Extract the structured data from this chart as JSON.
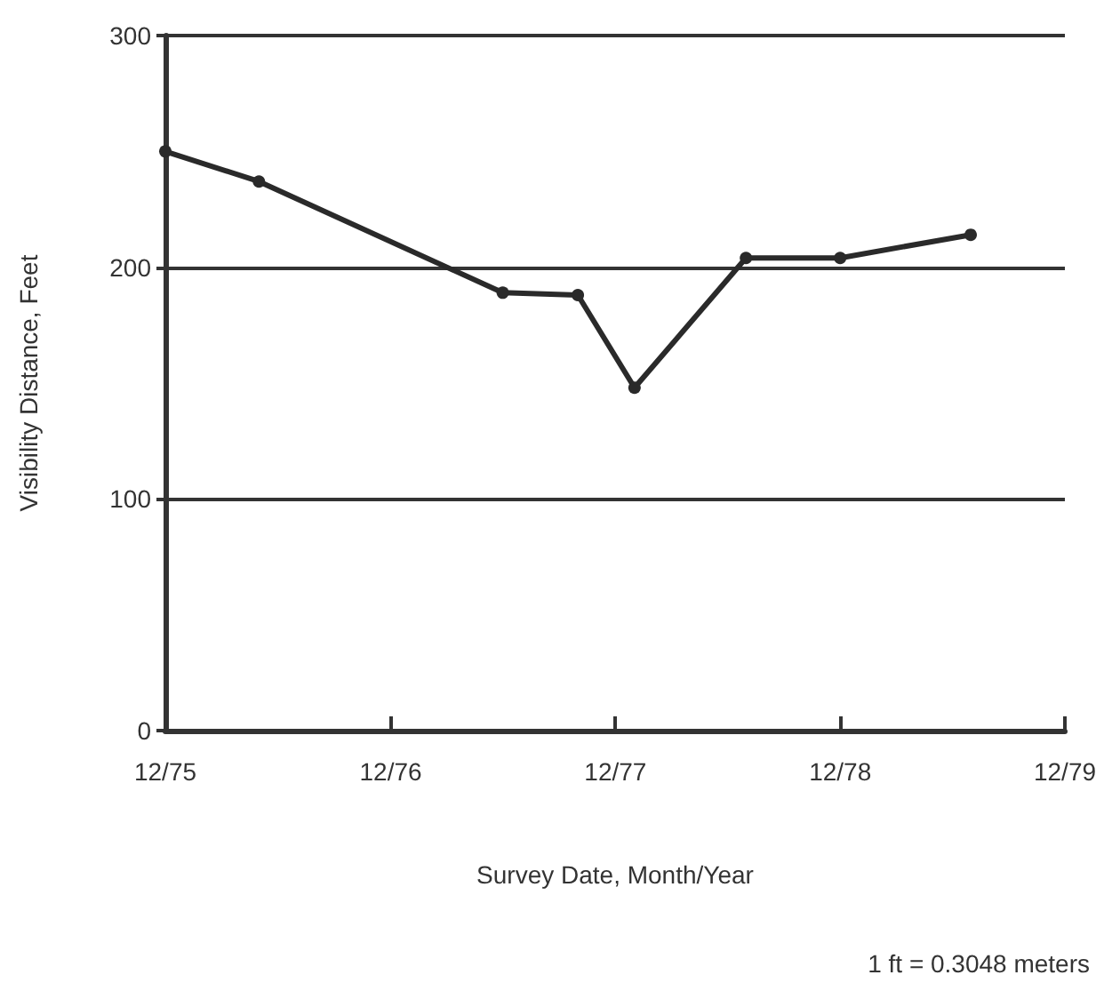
{
  "chart_data": {
    "type": "line",
    "xlabel": "Survey Date, Month/Year",
    "ylabel": "Visibility Distance, Feet",
    "annotations": [
      "1 ft = 0.3048 meters"
    ],
    "x": [
      "1975-12",
      "1976-05",
      "1977-06",
      "1977-10",
      "1978-01",
      "1978-07",
      "1978-12",
      "1979-07"
    ],
    "series": [
      {
        "color": "#2a2a2a",
        "values": [
          250,
          237,
          189,
          188,
          148,
          204,
          204,
          214
        ]
      }
    ],
    "xlim": [
      "1975-12",
      "1979-12"
    ],
    "xticks": [
      {
        "value": "1975-12",
        "label": "12/75"
      },
      {
        "value": "1976-12",
        "label": "12/76"
      },
      {
        "value": "1977-12",
        "label": "12/77"
      },
      {
        "value": "1978-12",
        "label": "12/78"
      },
      {
        "value": "1979-12",
        "label": "12/79"
      }
    ],
    "ylim": [
      0,
      300
    ],
    "yticks": [
      0,
      100,
      200,
      300
    ],
    "grid": "y",
    "marker": "circle",
    "line_style": "solid"
  }
}
